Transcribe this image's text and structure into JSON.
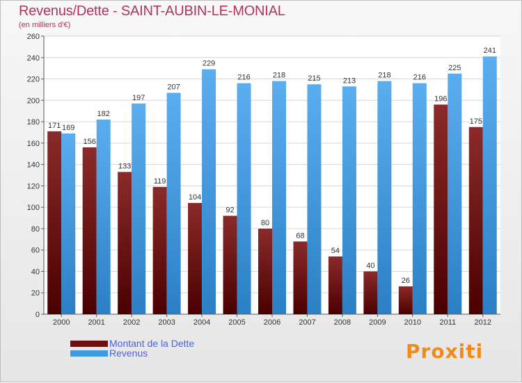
{
  "header": {
    "title": "Revenus/Dette - SAINT-AUBIN-LE-MONIAL",
    "subtitle": "(en milliers d'€)"
  },
  "chart_data": {
    "type": "bar",
    "title": "Revenus/Dette - SAINT-AUBIN-LE-MONIAL",
    "ylabel": "(en milliers d'€)",
    "xlabel": "",
    "ylim": [
      0,
      260
    ],
    "yticks": [
      0,
      20,
      40,
      60,
      80,
      100,
      120,
      140,
      160,
      180,
      200,
      220,
      240,
      260
    ],
    "grid": true,
    "categories": [
      "2000",
      "2001",
      "2002",
      "2003",
      "2004",
      "2005",
      "2006",
      "2007",
      "2008",
      "2009",
      "2010",
      "2011",
      "2012"
    ],
    "series": [
      {
        "name": "Montant de la Dette",
        "color": "#7a1a1a",
        "values": [
          171,
          156,
          133,
          119,
          104,
          92,
          80,
          68,
          54,
          40,
          26,
          196,
          175
        ]
      },
      {
        "name": "Revenus",
        "color": "#3f99e0",
        "values": [
          169,
          182,
          197,
          207,
          229,
          216,
          218,
          215,
          213,
          218,
          216,
          225,
          241
        ]
      }
    ],
    "legend": "bottom-left"
  },
  "legend": {
    "items": [
      {
        "label": "Montant de la Dette",
        "color": "#6b0f0f"
      },
      {
        "label": "Revenus",
        "color": "#3f99e0"
      }
    ]
  },
  "logo": {
    "text": "Proxiti"
  }
}
